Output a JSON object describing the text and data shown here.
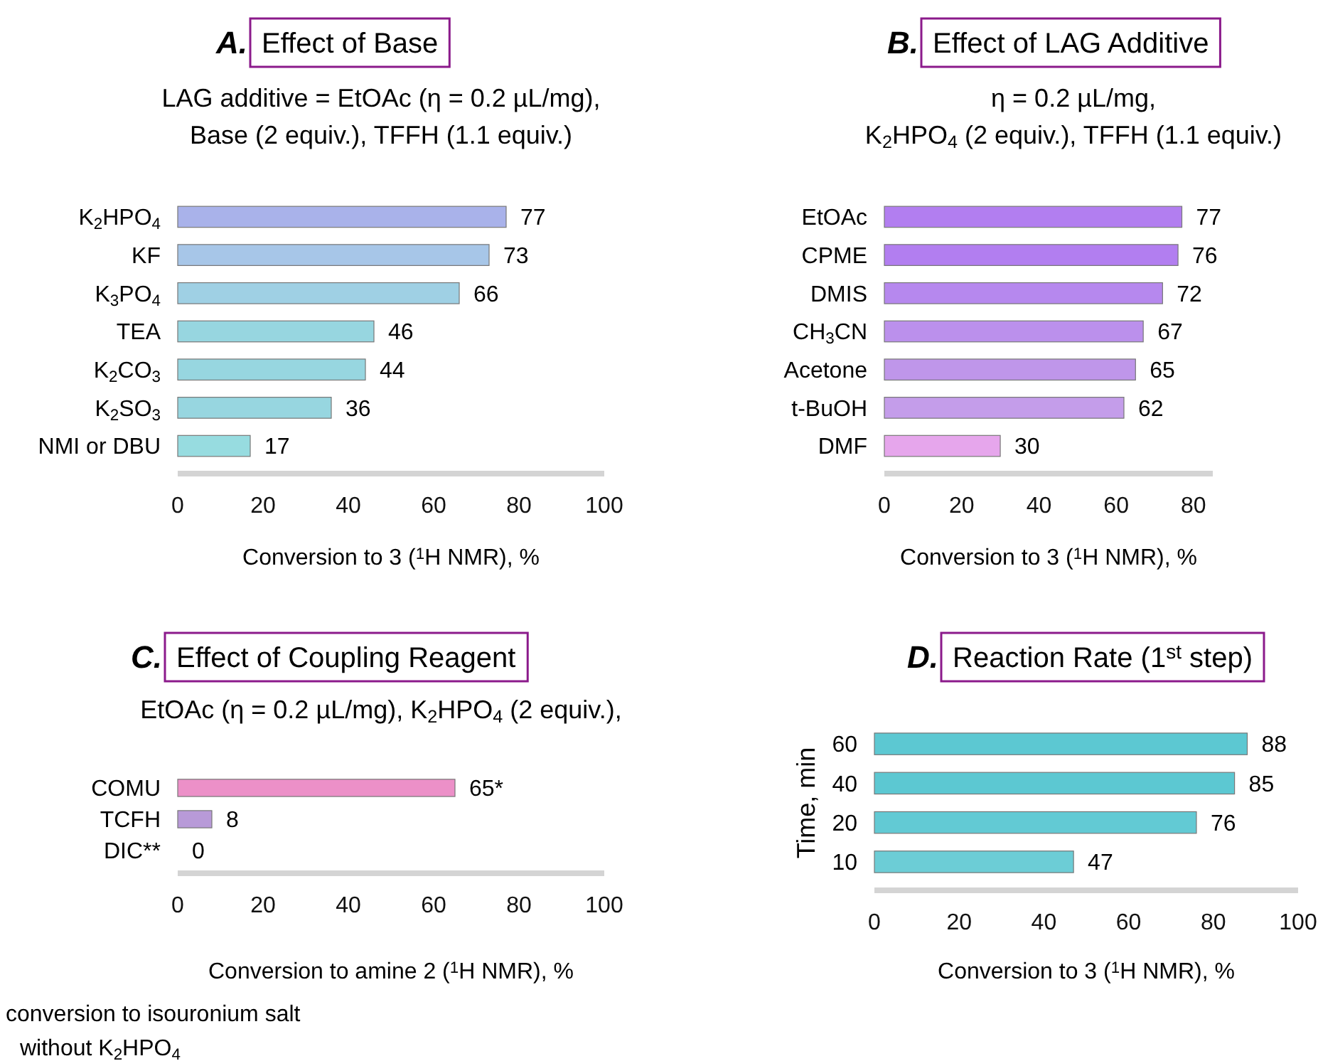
{
  "chart_data": [
    {
      "type": "bar",
      "orientation": "horizontal",
      "title": "A. Effect of Base",
      "subtitle": "LAG additive = EtOAc (η = 0.2 µL/mg),\nBase (2 equiv.), TFFH (1.1 equiv.)",
      "xlabel": "Conversion to 3 ($^{1}$H NMR), %",
      "categories": [
        "K$_{2}$HPO$_{4}$",
        "KF",
        "K$_{3}$PO$_{4}$",
        "TEA",
        "K$_{2}$CO$_{3}$",
        "K$_{2}$SO$_{3}$",
        "NMI or DBU"
      ],
      "values": [
        77,
        73,
        66,
        46,
        44,
        36,
        17
      ],
      "colors": [
        "#a9b2ea",
        "#a7c6e8",
        "#9fd0e4",
        "#97d6e0",
        "#97d6e0",
        "#97d6e0",
        "#97dce0"
      ],
      "data_labels": true,
      "xlim": [
        0,
        100
      ],
      "xticks": [
        0,
        20,
        40,
        60,
        80,
        100
      ]
    },
    {
      "type": "bar",
      "orientation": "horizontal",
      "title": "B. Effect of LAG Additive",
      "subtitle": "η = 0.2 µL/mg,\nK$_{2}$HPO$_{4}$ (2 equiv.), TFFH (1.1 equiv.)",
      "xlabel": "Conversion to 3 ($^{1}$H NMR), %",
      "categories": [
        "EtOAc",
        "CPME",
        "DMIS",
        "CH$_{3}$CN",
        "Acetone",
        "t-BuOH",
        "DMF"
      ],
      "values": [
        77,
        76,
        72,
        67,
        65,
        62,
        30
      ],
      "colors": [
        "#b27ef0",
        "#b27ef0",
        "#b688ee",
        "#bb90ec",
        "#bf96ea",
        "#c49dea",
        "#e6a6ec"
      ],
      "data_labels": true,
      "xlim": [
        0,
        85
      ],
      "xticks": [
        0,
        20,
        40,
        60,
        80
      ]
    },
    {
      "type": "bar",
      "orientation": "horizontal",
      "title": "C. Effect of Coupling Reagent",
      "subtitle": "EtOAc (η = 0.2 µL/mg), K$_{2}$HPO$_{4}$ (2 equiv.),",
      "xlabel": "Conversion to amine 2 ($^{1}$H NMR), %",
      "categories": [
        "COMU",
        "TCFH",
        "DIC**"
      ],
      "values": [
        65,
        8,
        0
      ],
      "colors": [
        "#ec90c8",
        "#b89ad8",
        "#9a9a9a"
      ],
      "value_labels": [
        "65*",
        "8",
        "0"
      ],
      "xlim": [
        0,
        100
      ],
      "xticks": [
        0,
        20,
        40,
        60,
        80,
        100
      ],
      "annotations": [
        "conversion to isouronium salt",
        "without K$_{2}$HPO$_{4}$"
      ]
    },
    {
      "type": "bar",
      "orientation": "horizontal",
      "title": "D. Reaction Rate (1$^{st}$ step)",
      "ylabel": "Time, min",
      "xlabel": "Conversion to 3 ($^{1}$H NMR), %",
      "categories": [
        "60",
        "40",
        "20",
        "10"
      ],
      "values": [
        88,
        85,
        76,
        47
      ],
      "colors": [
        "#5cc8d2",
        "#5cc8d2",
        "#62cad4",
        "#6ccdd6"
      ],
      "data_labels": true,
      "xlim": [
        0,
        100
      ],
      "xticks": [
        0,
        20,
        40,
        60,
        80,
        100
      ]
    }
  ]
}
